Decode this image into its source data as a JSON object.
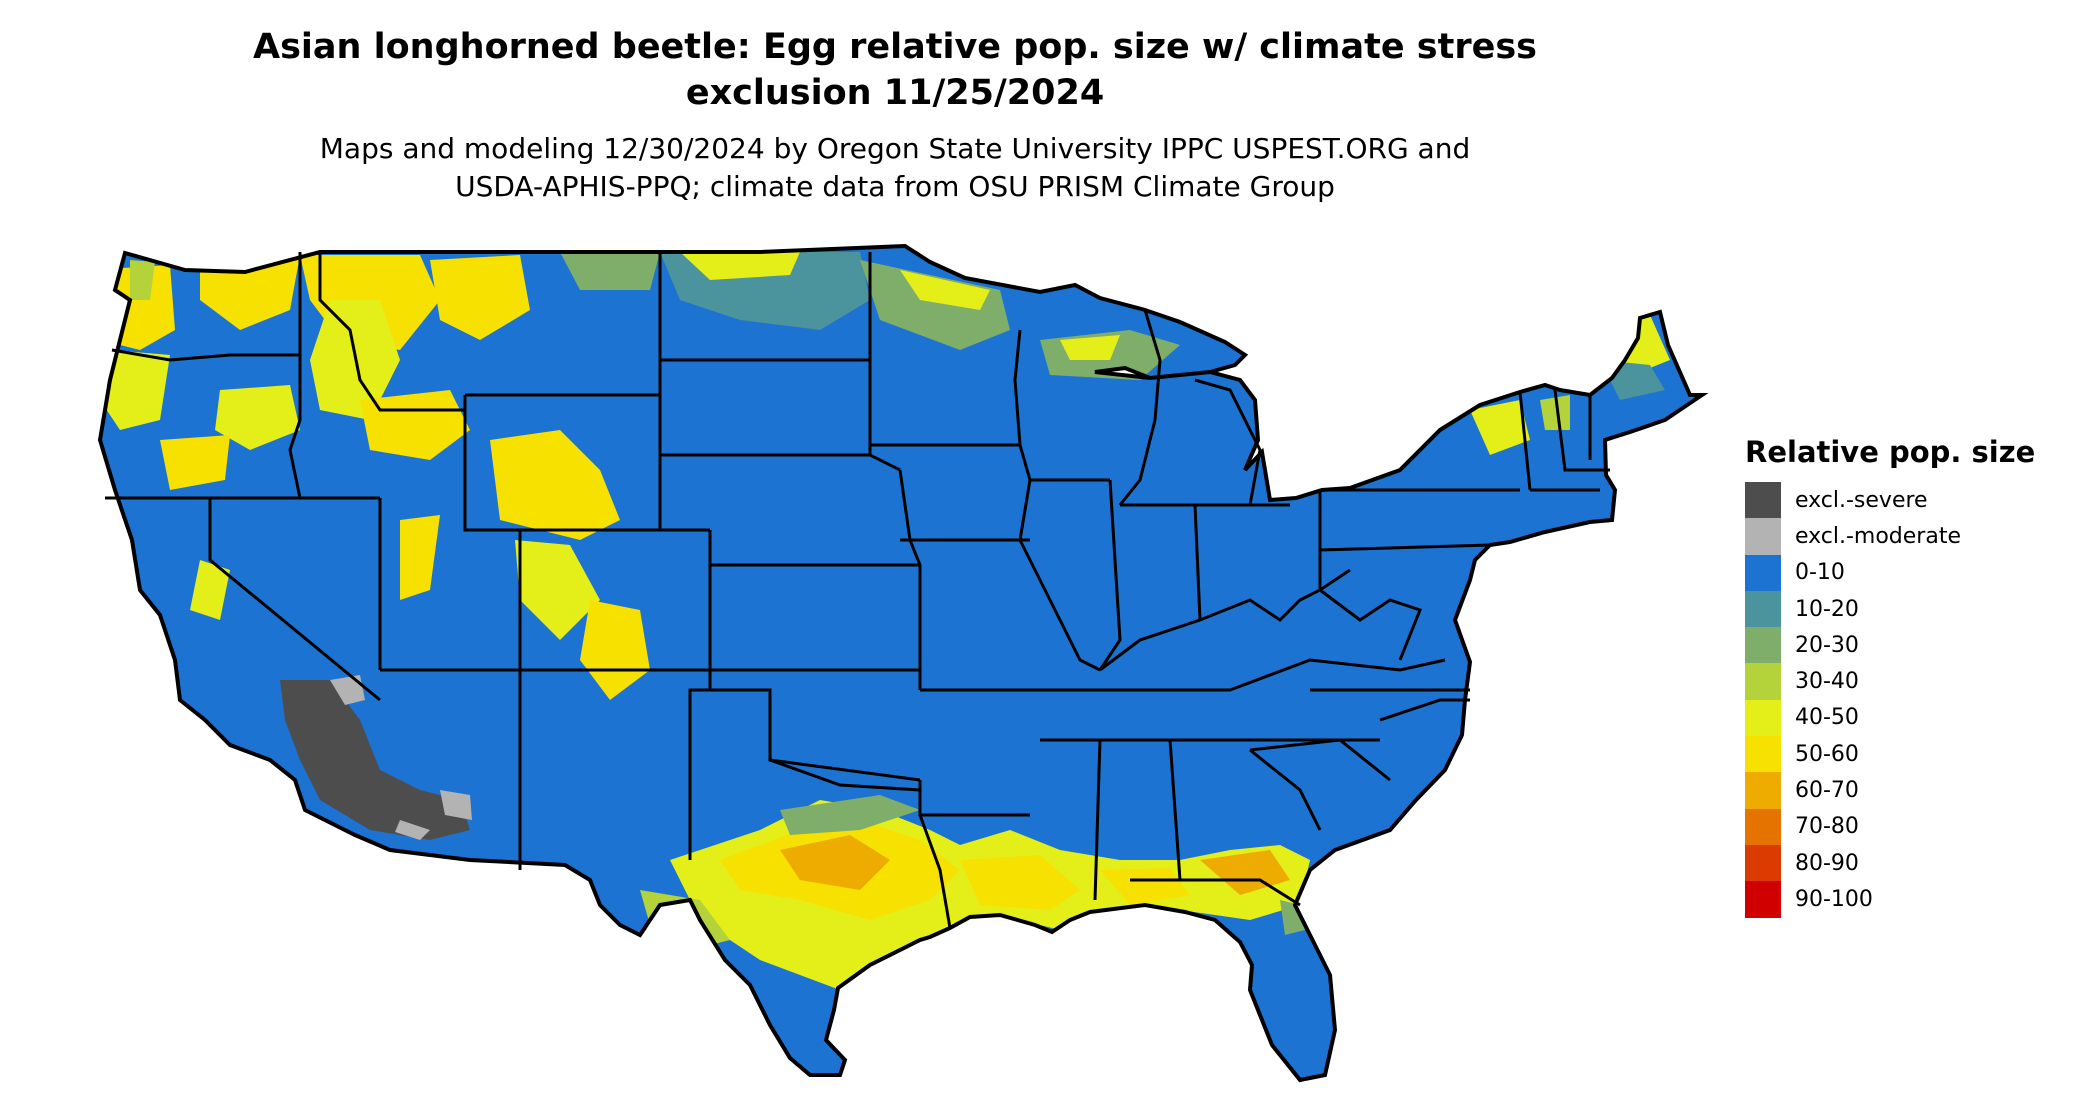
{
  "header": {
    "title_line1": "Asian longhorned beetle: Egg relative pop. size w/ climate stress",
    "title_line2": "exclusion 11/25/2024",
    "subtitle_line1": "Maps and modeling 12/30/2024 by Oregon State University IPPC USPEST.ORG and",
    "subtitle_line2": "USDA-APHIS-PPQ; climate data from OSU PRISM Climate Group"
  },
  "legend": {
    "title": "Relative pop. size",
    "items": [
      {
        "label": "excl.-severe",
        "color": "#4d4d4d"
      },
      {
        "label": "excl.-moderate",
        "color": "#b3b3b3"
      },
      {
        "label": "0-10",
        "color": "#1c73d1"
      },
      {
        "label": "10-20",
        "color": "#4b939d"
      },
      {
        "label": "20-30",
        "color": "#7fae6a"
      },
      {
        "label": "30-40",
        "color": "#b4d23a"
      },
      {
        "label": "40-50",
        "color": "#e4ef19"
      },
      {
        "label": "50-60",
        "color": "#f7e100"
      },
      {
        "label": "60-70",
        "color": "#eeab00"
      },
      {
        "label": "70-80",
        "color": "#e57300"
      },
      {
        "label": "80-90",
        "color": "#db3a00"
      },
      {
        "label": "90-100",
        "color": "#d10000"
      }
    ]
  },
  "map": {
    "base_color": "#1c73d1",
    "border_color": "#000000"
  }
}
